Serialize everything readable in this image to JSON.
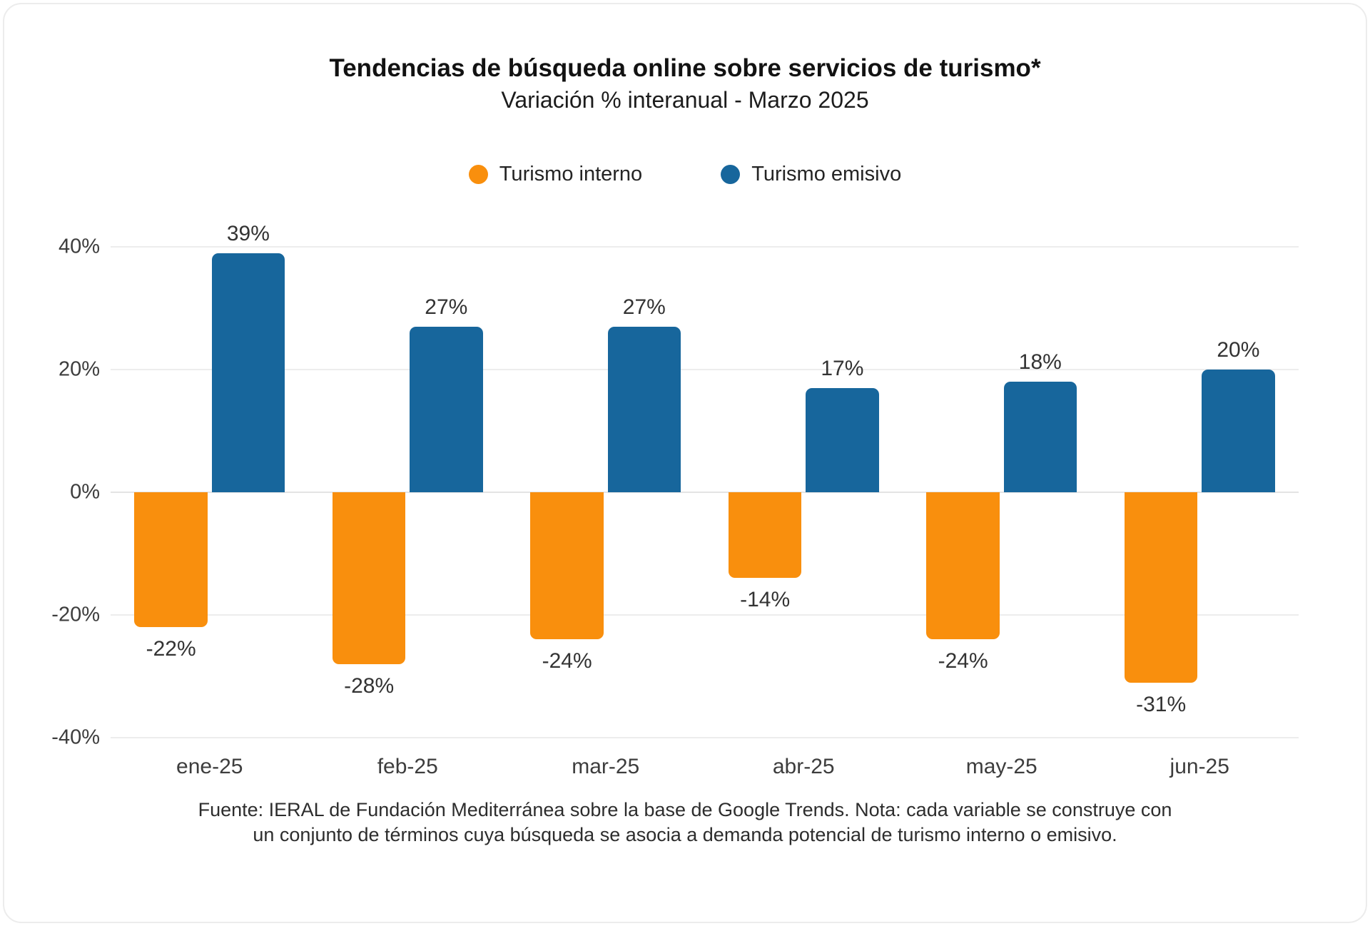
{
  "header": {
    "title": "Tendencias de búsqueda online sobre servicios de turismo*",
    "subtitle": "Variación % interanual - Marzo 2025"
  },
  "chart_data": {
    "type": "bar",
    "title": "Tendencias de búsqueda online sobre servicios de turismo*",
    "subtitle": "Variación % interanual - Marzo 2025",
    "categories": [
      "ene-25",
      "feb-25",
      "mar-25",
      "abr-25",
      "may-25",
      "jun-25"
    ],
    "series": [
      {
        "name": "Turismo interno",
        "color": "#F98F0D",
        "values": [
          -22,
          -28,
          -24,
          -14,
          -24,
          -31
        ]
      },
      {
        "name": "Turismo emisivo",
        "color": "#17669C",
        "values": [
          39,
          27,
          27,
          17,
          18,
          20
        ]
      }
    ],
    "value_suffix": "%",
    "ylim": [
      -40,
      40
    ],
    "yticks": [
      40,
      20,
      0,
      -20,
      -40
    ],
    "xlabel": "",
    "ylabel": "",
    "grid": true,
    "legend_position": "top"
  },
  "footer": {
    "line1": "Fuente: IERAL de Fundación Mediterránea sobre la base de Google Trends. Nota: cada variable se construye con",
    "line2": "un conjunto de términos cuya búsqueda se asocia a demanda potencial de turismo interno o emisivo."
  }
}
